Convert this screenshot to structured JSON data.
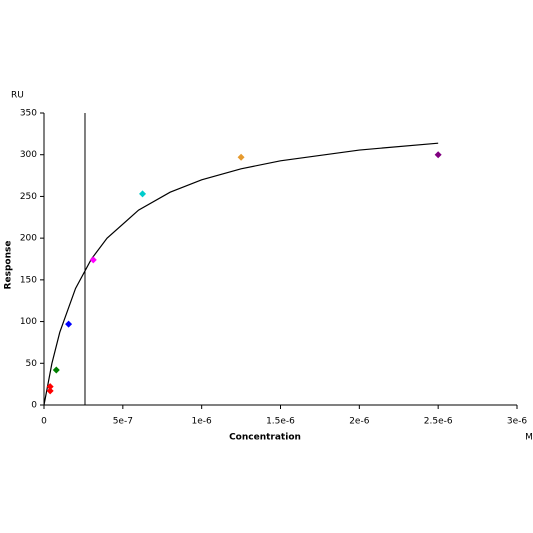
{
  "chart_data": {
    "type": "scatter",
    "y_unit": "RU",
    "ylabel": "Response",
    "xlabel": "Concentration",
    "x_unit": "M",
    "x": [
      3.9e-08,
      3.9e-08,
      7.8e-08,
      1.56e-07,
      3.125e-07,
      6.25e-07,
      1.25e-06,
      2.5e-06
    ],
    "values": [
      22,
      17,
      42,
      97,
      174,
      253,
      297,
      300
    ],
    "colors": [
      "#ff0000",
      "#ff0000",
      "#008000",
      "#0000ff",
      "#ff00ff",
      "#00cccc",
      "#e69a2e",
      "#800080"
    ],
    "fit": {
      "color": "#000000",
      "x": [
        0,
        5e-08,
        1e-07,
        2e-07,
        3e-07,
        4e-07,
        6e-07,
        8e-07,
        1e-06,
        1.25e-06,
        1.5e-06,
        2e-06,
        2.5e-06
      ],
      "values": [
        0,
        49.7,
        87.1,
        139.7,
        174.8,
        200,
        233.6,
        255.1,
        269.9,
        283.1,
        292.7,
        305.6,
        313.8
      ]
    },
    "vertical_line_x": 2.6e-07,
    "xlim": [
      0,
      3e-06
    ],
    "xticks": [
      0,
      {
        "value": 5e-07,
        "label": "5e-7"
      },
      {
        "value": 1e-06,
        "label": "1e-6"
      },
      {
        "value": 1.5e-06,
        "label": "1.5e-6"
      },
      {
        "value": 2e-06,
        "label": "2e-6"
      },
      {
        "value": 2.5e-06,
        "label": "2.5e-6"
      },
      {
        "value": 3e-06,
        "label": "3e-6"
      }
    ],
    "ylim": [
      0,
      350
    ],
    "yticks": [
      0,
      50,
      100,
      150,
      200,
      250,
      300,
      350
    ]
  }
}
